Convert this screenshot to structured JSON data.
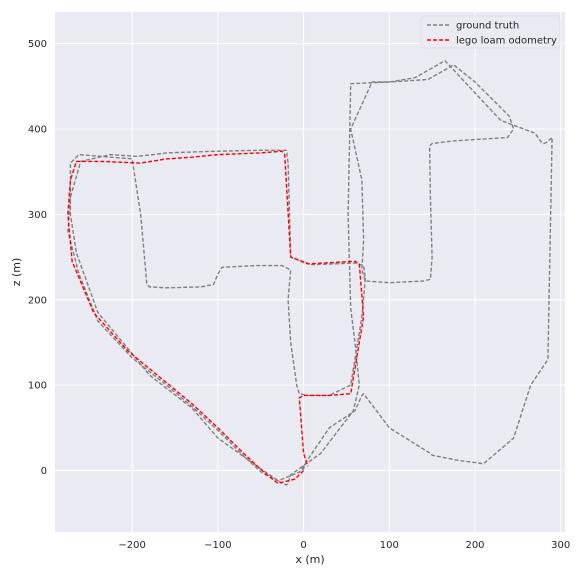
{
  "chart_data": {
    "type": "line",
    "xlabel": "x (m)",
    "ylabel": "z (m)",
    "xlim": [
      -290,
      305
    ],
    "ylim": [
      -72,
      537
    ],
    "xticks": [
      -200,
      -100,
      0,
      100,
      200,
      300
    ],
    "yticks": [
      0,
      100,
      200,
      300,
      400,
      500
    ],
    "xtick_labels": [
      "−200",
      "−100",
      "0",
      "100",
      "200",
      "300"
    ],
    "ytick_labels": [
      "0",
      "100",
      "200",
      "300",
      "400",
      "500"
    ],
    "grid": true,
    "legend_position": "top-right",
    "series": [
      {
        "name": "ground truth",
        "color": "#808080",
        "x": [
          1,
          -5,
          -30,
          -48,
          -70,
          -100,
          -130,
          -160,
          -200,
          -240,
          -262,
          -275,
          -272,
          -260,
          -225,
          -195,
          -175,
          -160,
          -130,
          -100,
          -50,
          -20,
          -18,
          -15,
          10,
          60,
          70,
          72,
          68,
          55,
          30,
          5,
          -5,
          -8,
          -15,
          -18,
          -15,
          -25,
          -55,
          -95,
          -100,
          -105,
          -120,
          -160,
          -180,
          -183,
          -190,
          -200,
          -262,
          -272,
          -272,
          -265,
          -240,
          -200,
          -180,
          -130,
          -100,
          -50,
          -25,
          -20,
          -18,
          -15,
          20,
          58,
          65,
          62,
          60,
          55,
          52,
          55,
          100,
          145,
          175,
          200,
          240,
          245,
          238,
          175,
          150,
          147,
          148,
          150,
          148,
          140,
          100,
          72,
          68,
          70,
          68,
          55,
          80,
          100,
          130,
          165,
          230,
          270,
          277,
          280,
          283,
          290,
          285,
          265,
          245,
          210,
          180,
          150,
          148,
          140,
          100,
          70,
          68,
          60,
          30,
          3,
          -3,
          0,
          1
        ],
        "y": [
          5,
          -2,
          -12,
          -3,
          17,
          47,
          75,
          100,
          132,
          175,
          230,
          280,
          320,
          362,
          370,
          368,
          370,
          372,
          373,
          374,
          375,
          375,
          360,
          250,
          241,
          243,
          240,
          225,
          180,
          100,
          88,
          88,
          90,
          100,
          150,
          200,
          235,
          240,
          240,
          238,
          230,
          218,
          215,
          214,
          215,
          220,
          300,
          365,
          370,
          360,
          300,
          255,
          185,
          137,
          112,
          73,
          38,
          2,
          -15,
          -17,
          -15,
          -5,
          20,
          70,
          100,
          130,
          150,
          190,
          300,
          453,
          455,
          458,
          475,
          455,
          415,
          400,
          390,
          386,
          383,
          380,
          320,
          250,
          224,
          222,
          220,
          222,
          235,
          270,
          340,
          400,
          455,
          455,
          460,
          480,
          410,
          395,
          385,
          383,
          384,
          390,
          130,
          100,
          38,
          8,
          12,
          18,
          20,
          25,
          50,
          90,
          88,
          70,
          50,
          10,
          1,
          2,
          5
        ]
      },
      {
        "name": "lego loam odometry",
        "color": "#ff0000",
        "x": [
          0,
          -10,
          -30,
          -45,
          -70,
          -100,
          -130,
          -160,
          -205,
          -245,
          -270,
          -275,
          -272,
          -265,
          -235,
          -190,
          -160,
          -130,
          -100,
          -50,
          -25,
          -22,
          -15,
          5,
          60,
          65,
          70,
          55,
          30,
          0,
          -5,
          -3,
          0,
          5
        ],
        "y": [
          0,
          -10,
          -15,
          -3,
          20,
          50,
          78,
          103,
          140,
          185,
          245,
          300,
          340,
          362,
          362,
          360,
          365,
          367,
          370,
          372,
          374,
          370,
          250,
          242,
          245,
          242,
          180,
          90,
          88,
          88,
          85,
          60,
          20,
          5
        ]
      }
    ]
  }
}
